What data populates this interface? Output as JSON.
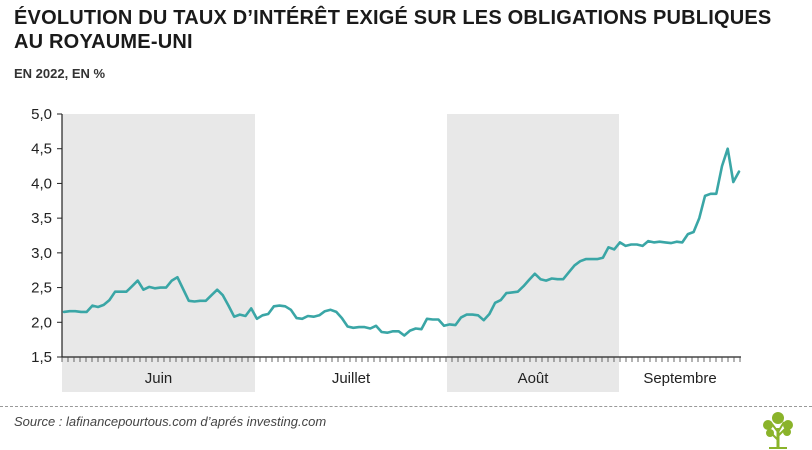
{
  "header": {
    "title": "Évolution du taux d’intérêt exigé sur les obligations publiques au Royaume-Uni",
    "subtitle": "EN 2022, EN %"
  },
  "footer": {
    "source": "Source : lafinancepourtous.com d’aprés investing.com"
  },
  "colors": {
    "line": "#3aa6a6",
    "shade": "#e8e8e8",
    "logo": "#8ab32a"
  },
  "chart_data": {
    "type": "line",
    "title": "Évolution du taux d’intérêt exigé sur les obligations publiques au Royaume-Uni",
    "subtitle": "EN 2022, EN %",
    "ylim": [
      1.5,
      5.0
    ],
    "yticks": [
      "5,0",
      "4,5",
      "4,0",
      "3,5",
      "3,0",
      "2,5",
      "2,0",
      "1,5"
    ],
    "months": [
      "Juin",
      "Juillet",
      "Août",
      "Septembre"
    ],
    "shaded_months": [
      "Juin",
      "Août"
    ],
    "grid": false,
    "series": [
      {
        "values": [
          2.15,
          2.16,
          2.16,
          2.15,
          2.15,
          2.24,
          2.22,
          2.25,
          2.32,
          2.44,
          2.44,
          2.44,
          2.52,
          2.6,
          2.47,
          2.51,
          2.49,
          2.5,
          2.5,
          2.6,
          2.65,
          2.48,
          2.31,
          2.3,
          2.31,
          2.31,
          2.39,
          2.47,
          2.39,
          2.24,
          2.08,
          2.11,
          2.09,
          2.2,
          2.05,
          2.1,
          2.12,
          2.23,
          2.24,
          2.23,
          2.18,
          2.06,
          2.05,
          2.09,
          2.08,
          2.1,
          2.16,
          2.18,
          2.15,
          2.06,
          1.94,
          1.92,
          1.93,
          1.93,
          1.91,
          1.95,
          1.86,
          1.85,
          1.87,
          1.87,
          1.81,
          1.88,
          1.91,
          1.9,
          2.05,
          2.04,
          2.04,
          1.95,
          1.97,
          1.96,
          2.07,
          2.11,
          2.11,
          2.1,
          2.03,
          2.12,
          2.28,
          2.32,
          2.42,
          2.43,
          2.44,
          2.52,
          2.61,
          2.7,
          2.62,
          2.6,
          2.63,
          2.62,
          2.62,
          2.72,
          2.82,
          2.88,
          2.91,
          2.91,
          2.91,
          2.93,
          3.08,
          3.05,
          3.15,
          3.1,
          3.12,
          3.12,
          3.1,
          3.17,
          3.15,
          3.16,
          3.15,
          3.14,
          3.16,
          3.15,
          3.27,
          3.3,
          3.5,
          3.82,
          3.85,
          3.85,
          4.25,
          4.5,
          4.02,
          4.17
        ]
      }
    ]
  }
}
